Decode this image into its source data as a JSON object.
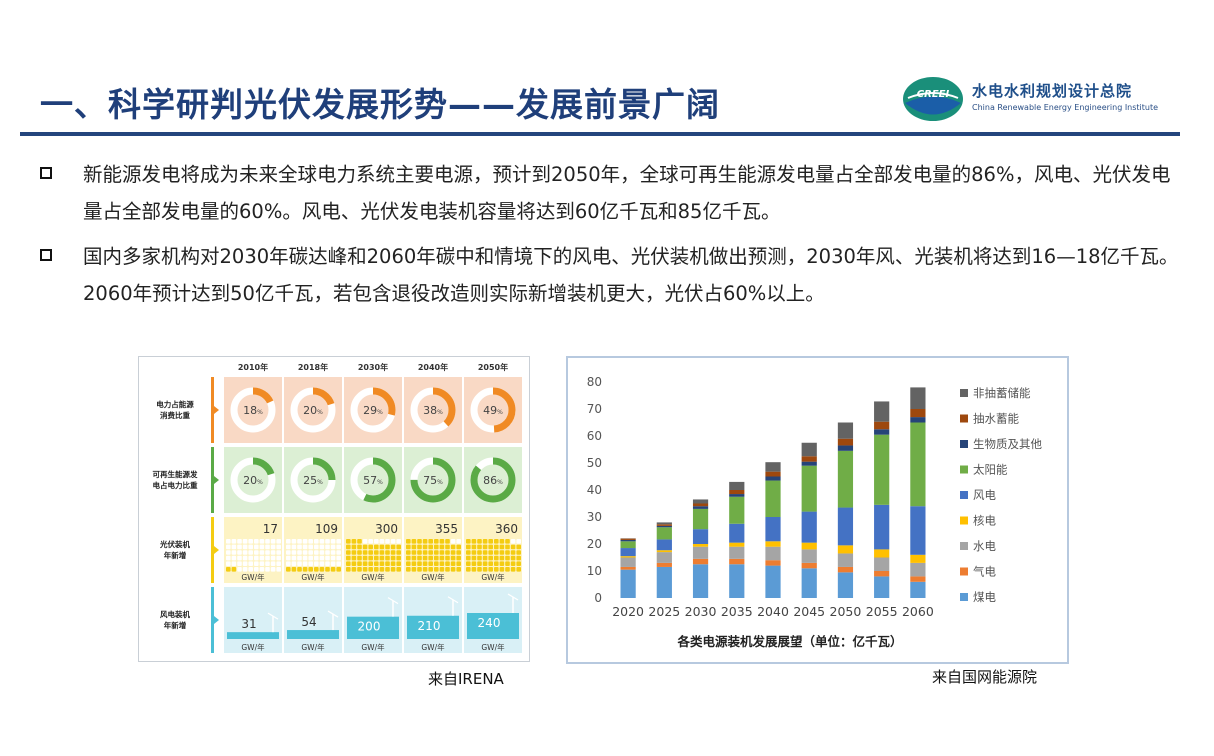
{
  "header": {
    "title": "一、科学研判光伏发展形势——发展前景广阔",
    "logo_mark_text": "CREEI",
    "logo_cn": "水电水利规划设计总院",
    "logo_en": "China Renewable Energy Engineering Institute"
  },
  "bullets": [
    "新能源发电将成为未来全球电力系统主要电源，预计到2050年，全球可再生能源发电量占全部发电量的86%，风电、光伏发电量占全部发电量的60%。风电、光伏发电装机容量将达到60亿千瓦和85亿千瓦。",
    "国内多家机构对2030年碳达峰和2060年碳中和情境下的风电、光伏装机做出预测，2030年风、光装机将达到16—18亿千瓦。2060年预计达到50亿千瓦，若包含退役改造则实际新增装机更大，光伏占60%以上。"
  ],
  "irena": {
    "years": [
      "2010年",
      "2018年",
      "2030年",
      "2040年",
      "2050年"
    ],
    "rows": [
      {
        "label1": "电力占能源",
        "label2": "消费比重",
        "values": [
          "18",
          "20",
          "29",
          "38",
          "49"
        ],
        "unit": "%"
      },
      {
        "label1": "可再生能源发",
        "label2": "电占电力比重",
        "values": [
          "20",
          "25",
          "57",
          "75",
          "86"
        ],
        "unit": "%"
      },
      {
        "label1": "光伏装机",
        "label2": "年新增",
        "values": [
          "17",
          "109",
          "300",
          "355",
          "360"
        ],
        "unit": "GW/年"
      },
      {
        "label1": "风电装机",
        "label2": "年新增",
        "values": [
          "31",
          "54",
          "200",
          "210",
          "240"
        ],
        "unit": "GW/年"
      }
    ],
    "colors": {
      "row1_bg": "#f9d9c5",
      "row1_accent": "#f08a24",
      "row2_bg": "#dcefd4",
      "row2_accent": "#5aaa46",
      "row3_bg": "#fdf3c4",
      "row3_accent": "#f4cc12",
      "row4_bg": "#d9f0f6",
      "row4_accent": "#4bbfd6"
    }
  },
  "chart_data": {
    "type": "bar",
    "stacked": true,
    "title": "各类电源装机发展展望（单位：亿千瓦）",
    "categories": [
      "2020",
      "2025",
      "2030",
      "2035",
      "2040",
      "2045",
      "2050",
      "2055",
      "2060"
    ],
    "ylim": [
      0,
      80
    ],
    "yticks": [
      0,
      10,
      20,
      30,
      40,
      50,
      60,
      70,
      80
    ],
    "legend_position": "right",
    "series": [
      {
        "name": "煤电",
        "color": "#5b9bd5",
        "values": [
          10.5,
          11.5,
          12.5,
          12.5,
          12,
          11,
          9.5,
          8,
          6
        ]
      },
      {
        "name": "气电",
        "color": "#ed7d31",
        "values": [
          1,
          1.5,
          2,
          2,
          2,
          2,
          2,
          2,
          2
        ]
      },
      {
        "name": "水电",
        "color": "#a5a5a5",
        "values": [
          3.5,
          4,
          4.5,
          4.5,
          5,
          5,
          5,
          5,
          5
        ]
      },
      {
        "name": "核电",
        "color": "#ffc000",
        "values": [
          0.5,
          0.7,
          1,
          1.5,
          2,
          2.5,
          3,
          3,
          3
        ]
      },
      {
        "name": "风电",
        "color": "#4472c4",
        "values": [
          3,
          4,
          5.5,
          7,
          9,
          11.5,
          14,
          16.5,
          18
        ]
      },
      {
        "name": "太阳能",
        "color": "#70ad47",
        "values": [
          2.5,
          4.5,
          7.5,
          10,
          13.5,
          17,
          21,
          26,
          31
        ]
      },
      {
        "name": "生物质及其他",
        "color": "#264478",
        "values": [
          0.5,
          0.5,
          1,
          1,
          1.5,
          1.5,
          2,
          2,
          2
        ]
      },
      {
        "name": "抽水蓄能",
        "color": "#9e480e",
        "values": [
          0.5,
          0.6,
          1,
          1.5,
          1.8,
          2,
          2.5,
          2.8,
          3
        ]
      },
      {
        "name": "非抽蓄储能",
        "color": "#636363",
        "values": [
          0.1,
          0.7,
          1.5,
          3,
          3.5,
          5,
          6,
          7.5,
          8
        ]
      }
    ]
  },
  "captions": {
    "left": "来自IRENA",
    "right": "来自国网能源院"
  }
}
